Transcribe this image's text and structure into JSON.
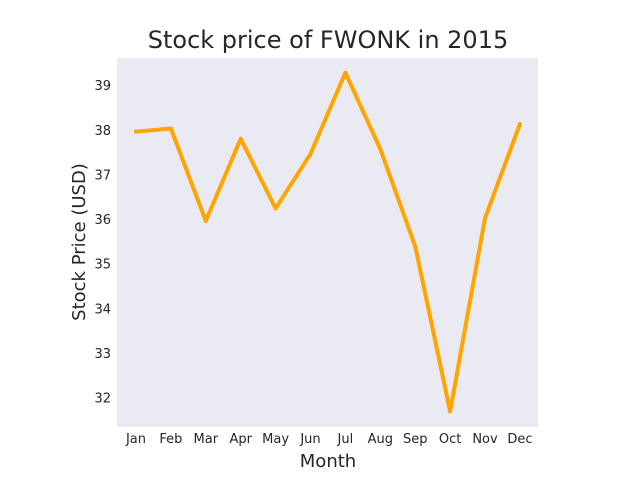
{
  "chart_data": {
    "type": "line",
    "title": "Stock price of FWONK in 2015",
    "xlabel": "Month",
    "ylabel": "Stock Price (USD)",
    "categories": [
      "Jan",
      "Feb",
      "Mar",
      "Apr",
      "May",
      "Jun",
      "Jul",
      "Aug",
      "Sep",
      "Oct",
      "Nov",
      "Dec"
    ],
    "series": [
      {
        "values": [
          37.97,
          38.04,
          35.97,
          37.81,
          36.25,
          37.47,
          39.29,
          37.58,
          35.4,
          31.7,
          36.03,
          38.14
        ],
        "color": "#FFA500"
      }
    ],
    "yticks": [
      32,
      33,
      34,
      35,
      36,
      37,
      38,
      39
    ],
    "ylim": [
      31.35,
      39.62
    ],
    "grid": false,
    "background": "#EAEAF2"
  }
}
